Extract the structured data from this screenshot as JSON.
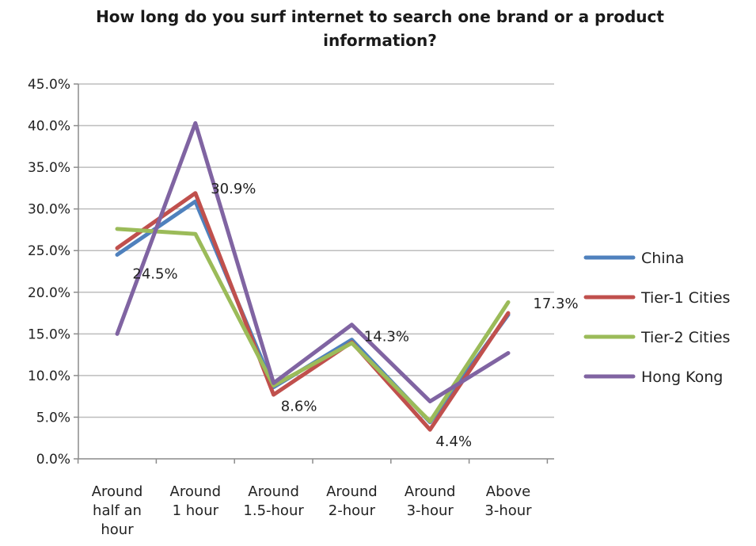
{
  "chart_data": {
    "type": "line",
    "title": "How long do you surf internet to search one brand or a product information?",
    "xlabel": "",
    "ylabel": "",
    "ylim": [
      0,
      45
    ],
    "y_ticks": [
      "0.0%",
      "5.0%",
      "10.0%",
      "15.0%",
      "20.0%",
      "25.0%",
      "30.0%",
      "35.0%",
      "40.0%",
      "45.0%"
    ],
    "categories": [
      [
        "Around",
        "half an",
        "hour"
      ],
      [
        "Around",
        "1 hour"
      ],
      [
        "Around",
        "1.5-hour"
      ],
      [
        "Around",
        "2-hour"
      ],
      [
        "Around",
        "3-hour"
      ],
      [
        "Above",
        "3-hour"
      ]
    ],
    "grid": true,
    "legend_position": "right",
    "series": [
      {
        "name": "China",
        "color": "#4f81bd",
        "values": [
          24.5,
          30.9,
          8.6,
          14.3,
          4.4,
          17.3
        ]
      },
      {
        "name": "Tier-1 Cities",
        "color": "#c0504d",
        "values": [
          25.3,
          31.9,
          7.7,
          14.0,
          3.5,
          17.5
        ]
      },
      {
        "name": "Tier-2 Cities",
        "color": "#9bbb59",
        "values": [
          27.6,
          27.0,
          8.8,
          13.9,
          4.5,
          18.8
        ]
      },
      {
        "name": "Hong Kong",
        "color": "#8064a2",
        "values": [
          15.0,
          40.3,
          9.1,
          16.1,
          6.9,
          12.7
        ]
      }
    ],
    "data_labels": [
      {
        "category_index": 0,
        "value": 24.5,
        "text": "24.5%"
      },
      {
        "category_index": 1,
        "value": 30.9,
        "text": "30.9%"
      },
      {
        "category_index": 2,
        "value": 8.6,
        "text": "8.6%"
      },
      {
        "category_index": 3,
        "value": 14.3,
        "text": "14.3%"
      },
      {
        "category_index": 4,
        "value": 4.4,
        "text": "4.4%"
      },
      {
        "category_index": 5,
        "value": 17.3,
        "text": "17.3%"
      }
    ]
  }
}
